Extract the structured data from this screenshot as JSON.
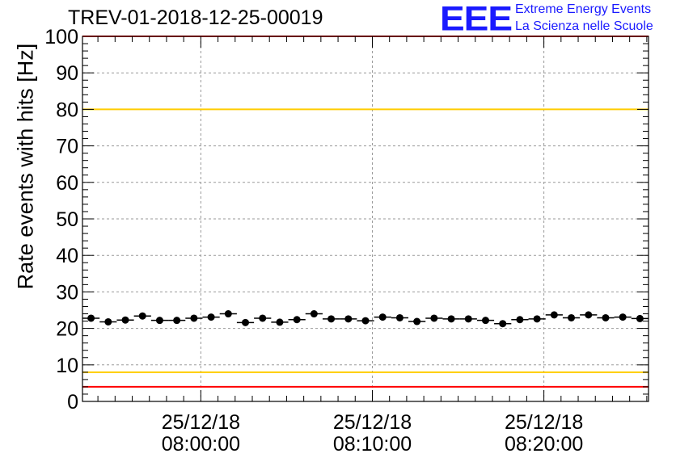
{
  "title": "TREV-01-2018-12-25-00019",
  "logo": {
    "mark": "EEE",
    "line1": "Extreme Energy Events",
    "line2": "La Scienza nelle Scuole"
  },
  "colors": {
    "red_line": "#ff0000",
    "yellow_line": "#ffcc00",
    "marker": "#000000",
    "grid": "#999999",
    "logo": "#1a1aff"
  },
  "chart_data": {
    "type": "scatter",
    "title": "TREV-01-2018-12-25-00019",
    "xlabel": "",
    "ylabel": "Rate events with hits [Hz]",
    "ylim": [
      0,
      100
    ],
    "yticks": [
      0,
      10,
      20,
      30,
      40,
      50,
      60,
      70,
      80,
      90,
      100
    ],
    "xlim_minutes": [
      -6.9,
      26.1
    ],
    "xticks": [
      {
        "minutes": 0,
        "date": "25/12/18",
        "time": "08:00:00"
      },
      {
        "minutes": 10,
        "date": "25/12/18",
        "time": "08:10:00"
      },
      {
        "minutes": 20,
        "date": "25/12/18",
        "time": "08:20:00"
      }
    ],
    "grid": true,
    "bin_minutes": 1.0,
    "x_minutes": [
      -6.4,
      -5.4,
      -4.4,
      -3.4,
      -2.4,
      -1.4,
      -0.4,
      0.6,
      1.6,
      2.6,
      3.6,
      4.6,
      5.6,
      6.6,
      7.6,
      8.6,
      9.6,
      10.6,
      11.6,
      12.6,
      13.6,
      14.6,
      15.6,
      16.6,
      17.6,
      18.6,
      19.6,
      20.6,
      21.6,
      22.6,
      23.6,
      24.6,
      25.6
    ],
    "values": [
      22.8,
      21.8,
      22.3,
      23.4,
      22.2,
      22.2,
      22.8,
      23.1,
      24.0,
      21.6,
      22.8,
      21.7,
      22.4,
      24.0,
      22.6,
      22.6,
      22.1,
      23.1,
      22.9,
      21.9,
      22.8,
      22.6,
      22.6,
      22.2,
      21.3,
      22.4,
      22.6,
      23.7,
      22.9,
      23.7,
      22.9,
      23.1,
      22.7
    ],
    "reference_lines": [
      {
        "value": 100,
        "color": "red"
      },
      {
        "value": 80,
        "color": "yellow"
      },
      {
        "value": 8,
        "color": "yellow"
      },
      {
        "value": 4,
        "color": "red"
      }
    ]
  }
}
